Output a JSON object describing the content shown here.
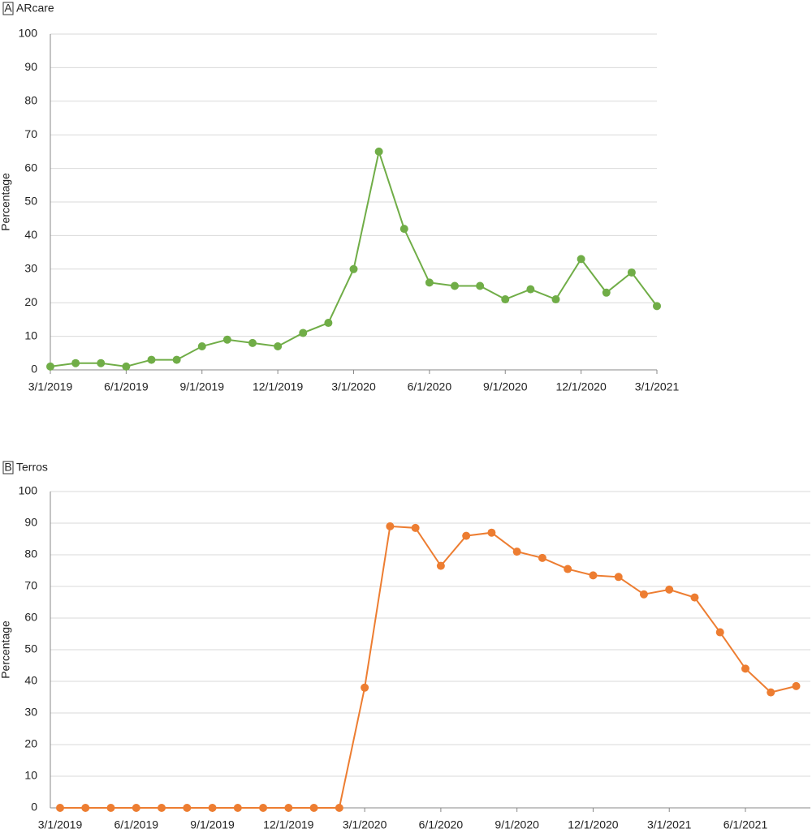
{
  "chart_data": [
    {
      "type": "line",
      "panel_label": "A",
      "title": "ARcare",
      "y_label": "Percentage",
      "categories": [
        "3/1/2019",
        null,
        null,
        "6/1/2019",
        null,
        null,
        "9/1/2019",
        null,
        null,
        "12/1/2019",
        null,
        null,
        "3/1/2020",
        null,
        null,
        "6/1/2020",
        null,
        null,
        "9/1/2020",
        null,
        null,
        "12/1/2020",
        null,
        null,
        "3/1/2021"
      ],
      "values": [
        1,
        2,
        2,
        1,
        3,
        3,
        7,
        9,
        8,
        7,
        11,
        14,
        30,
        65,
        42,
        26,
        25,
        25,
        21,
        24,
        21,
        33,
        23,
        29,
        19
      ],
      "color": "#70ad47",
      "ylim": [
        0,
        100
      ],
      "yticks": [
        0,
        10,
        20,
        30,
        40,
        50,
        60,
        70,
        80,
        90,
        100
      ],
      "grid": true
    },
    {
      "type": "line",
      "panel_label": "B",
      "title": "Terros",
      "y_label": "Percentage",
      "categories": [
        "3/1/2019",
        null,
        null,
        "6/1/2019",
        null,
        null,
        "9/1/2019",
        null,
        null,
        "12/1/2019",
        null,
        null,
        "3/1/2020",
        null,
        null,
        "6/1/2020",
        null,
        null,
        "9/1/2020",
        null,
        null,
        "12/1/2020",
        null,
        null,
        "3/1/2021",
        null,
        null,
        "6/1/2021",
        null,
        null
      ],
      "values": [
        0,
        0,
        0,
        0,
        0,
        0,
        0,
        0,
        0,
        0,
        0,
        0,
        38,
        89,
        88.5,
        76.5,
        86,
        87,
        81,
        79,
        75.5,
        73.5,
        73,
        67.5,
        69,
        66.5,
        55.5,
        44,
        36.5,
        38.5
      ],
      "color": "#ed7d31",
      "ylim": [
        0,
        100
      ],
      "yticks": [
        0,
        10,
        20,
        30,
        40,
        50,
        60,
        70,
        80,
        90,
        100
      ],
      "grid": true
    }
  ]
}
